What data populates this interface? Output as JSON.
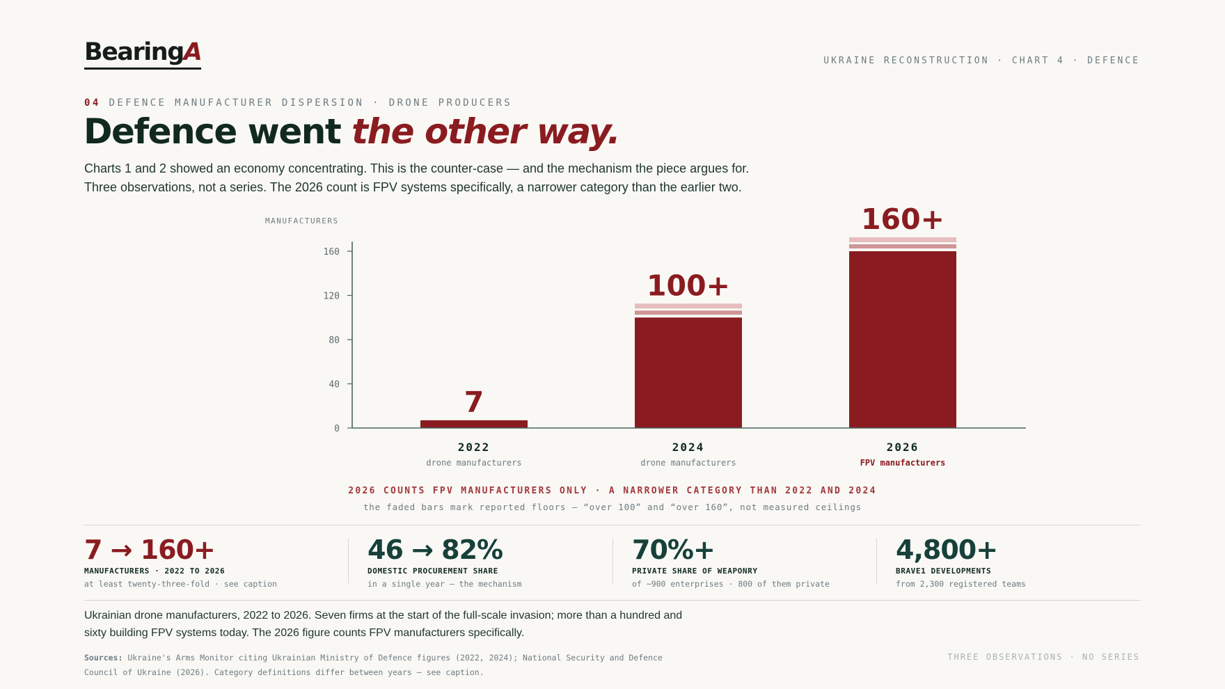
{
  "header": {
    "logo_text": "Bearing",
    "logo_accent": "A",
    "top_right": "UKRAINE RECONSTRUCTION · CHART 4 · DEFENCE"
  },
  "kicker": {
    "number": "04",
    "text": "DEFENCE MANUFACTURER DISPERSION · DRONE PRODUCERS"
  },
  "headline": {
    "plain": "Defence went ",
    "accent": "the other way."
  },
  "intro": {
    "line1": "Charts 1 and 2 showed an economy concentrating. This is the counter-case — and the mechanism the piece argues for.",
    "line2": "Three observations, not a series. The 2026 count is FPV systems specifically, a narrower category than the earlier two."
  },
  "chart_data": {
    "type": "bar",
    "ylabel": "MANUFACTURERS",
    "ylim": [
      0,
      180
    ],
    "yticks": [
      0,
      40,
      80,
      120,
      160
    ],
    "categories": [
      "2022",
      "2024",
      "2026"
    ],
    "values": [
      7,
      100,
      160
    ],
    "value_labels": [
      "7",
      "100+",
      "160+"
    ],
    "category_sublabels": [
      "drone manufacturers",
      "drone manufacturers",
      "FPV manufacturers"
    ],
    "highlight_sublabel": [
      false,
      false,
      true
    ],
    "floor_marked": [
      false,
      true,
      true
    ],
    "colors": {
      "bar": "#8a1c21",
      "floor_light": "#e6bcbd",
      "floor_strong": "#cf9597"
    }
  },
  "chart_notes": {
    "main": "2026 COUNTS FPV MANUFACTURERS ONLY · A NARROWER CATEGORY THAN 2022 AND 2024",
    "sub": "the faded bars mark reported floors — “over 100” and “over 160”, not measured ceilings"
  },
  "stats": [
    {
      "big": "7 → 160+",
      "label": "MANUFACTURERS · 2022 TO 2026",
      "sub": "at least twenty-three-fold · see caption"
    },
    {
      "big": "46 → 82%",
      "label": "DOMESTIC PROCUREMENT SHARE",
      "sub": "in a single year — the mechanism"
    },
    {
      "big": "70%+",
      "label": "PRIVATE SHARE OF WEAPONRY",
      "sub": "of ~900 enterprises · 800 of them private"
    },
    {
      "big": "4,800+",
      "label": "BRAVE1 DEVELOPMENTS",
      "sub": "from 2,300 registered teams"
    }
  ],
  "caption": {
    "line1": "Ukrainian drone manufacturers, 2022 to 2026. Seven firms at the start of the full-scale invasion; more than a hundred and",
    "line2": "sixty building FPV systems today. The 2026 figure counts FPV manufacturers specifically."
  },
  "sources": {
    "label": "Sources:",
    "line1": "Ukraine's Arms Monitor citing Ukrainian Ministry of Defence figures (2022, 2024); National Security and Defence",
    "line2": "Council of Ukraine (2026). Category definitions differ between years — see caption."
  },
  "footer_right": "THREE OBSERVATIONS · NO SERIES",
  "colors": {
    "accent": "#8a1c21",
    "ink": "#11291f",
    "background": "#f9f8f4"
  }
}
